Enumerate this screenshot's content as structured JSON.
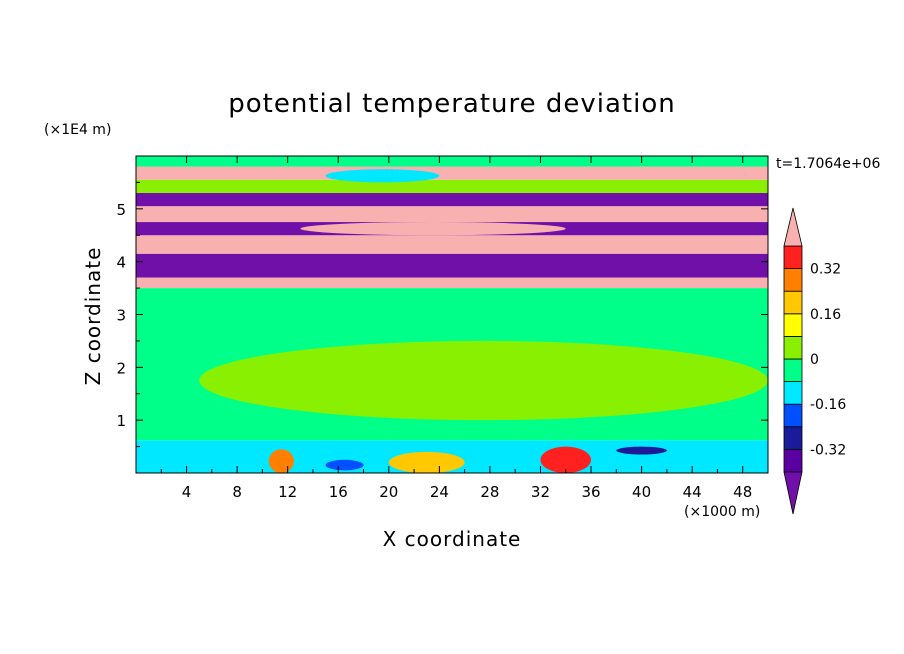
{
  "chart_data": {
    "type": "heatmap",
    "title": "potential temperature deviation",
    "xlabel": "X coordinate",
    "ylabel": "Z coordinate",
    "x_unit": "(×1000 m)",
    "y_unit": "(×1E4 m)",
    "time_label": "t=1.7064e+06",
    "xlim": [
      0,
      50
    ],
    "ylim": [
      0,
      6
    ],
    "x_ticks": [
      4,
      8,
      12,
      16,
      20,
      24,
      28,
      32,
      36,
      40,
      44,
      48
    ],
    "y_ticks": [
      1,
      2,
      3,
      4,
      5
    ],
    "colorbar": {
      "levels": [
        -0.4,
        -0.32,
        -0.24,
        -0.16,
        -0.08,
        0,
        0.08,
        0.16,
        0.24,
        0.32,
        0.4
      ],
      "labeled_levels": [
        "0.32",
        "0.16",
        "0",
        "-0.16",
        "-0.32"
      ],
      "labeled_values": [
        0.32,
        0.16,
        0,
        -0.16,
        -0.32
      ],
      "colors": [
        "#5a00a0",
        "#1a1a9a",
        "#0050ff",
        "#00e8ff",
        "#00ff88",
        "#88f000",
        "#ffff00",
        "#ffc800",
        "#ff8000",
        "#ff2020"
      ],
      "under_color": "#7010a8",
      "over_color": "#f8b0b0"
    },
    "bands": [
      {
        "z0": 0.0,
        "z1": 0.62,
        "value": -0.1,
        "color": "#00e8ff"
      },
      {
        "z0": 0.62,
        "z1": 3.5,
        "value": 0.03,
        "color": "#00ff88"
      },
      {
        "z0": 3.5,
        "z1": 3.7,
        "value": 0.45,
        "color": "#f8b0b0"
      },
      {
        "z0": 3.7,
        "z1": 4.15,
        "value": -0.45,
        "color": "#7010a8"
      },
      {
        "z0": 4.15,
        "z1": 4.5,
        "value": 0.45,
        "color": "#f8b0b0"
      },
      {
        "z0": 4.5,
        "z1": 4.75,
        "value": -0.45,
        "color": "#7010a8"
      },
      {
        "z0": 4.75,
        "z1": 5.05,
        "value": 0.45,
        "color": "#f8b0b0"
      },
      {
        "z0": 5.05,
        "z1": 5.3,
        "value": -0.45,
        "color": "#7010a8"
      },
      {
        "z0": 5.3,
        "z1": 5.55,
        "value": 0.1,
        "color": "#88f000"
      },
      {
        "z0": 5.55,
        "z1": 5.8,
        "value": 0.45,
        "color": "#f8b0b0"
      },
      {
        "z0": 5.8,
        "z1": 6.0,
        "value": 0.05,
        "color": "#00ff88"
      }
    ],
    "features": [
      {
        "x0": 10.5,
        "x1": 12.5,
        "z0": 0.0,
        "z1": 0.45,
        "value": 0.3,
        "color": "#ff8000"
      },
      {
        "x0": 20,
        "x1": 26,
        "z0": 0.0,
        "z1": 0.4,
        "value": 0.2,
        "color": "#ffc800"
      },
      {
        "x0": 32,
        "x1": 36,
        "z0": 0.0,
        "z1": 0.5,
        "value": 0.35,
        "color": "#ff2020"
      },
      {
        "x0": 15,
        "x1": 18,
        "z0": 0.05,
        "z1": 0.25,
        "value": -0.16,
        "color": "#0050ff"
      },
      {
        "x0": 38,
        "x1": 42,
        "z0": 0.35,
        "z1": 0.5,
        "value": -0.3,
        "color": "#1a1a9a"
      },
      {
        "x0": 5,
        "x1": 50,
        "z0": 1.0,
        "z1": 2.5,
        "value": 0.08,
        "color": "#88f000"
      },
      {
        "x0": 13,
        "x1": 34,
        "z0": 4.5,
        "z1": 4.75,
        "value": 0.45,
        "color": "#f8b0b0"
      },
      {
        "x0": 15,
        "x1": 24,
        "z0": 5.5,
        "z1": 5.75,
        "value": -0.2,
        "color": "#00e8ff"
      }
    ]
  }
}
